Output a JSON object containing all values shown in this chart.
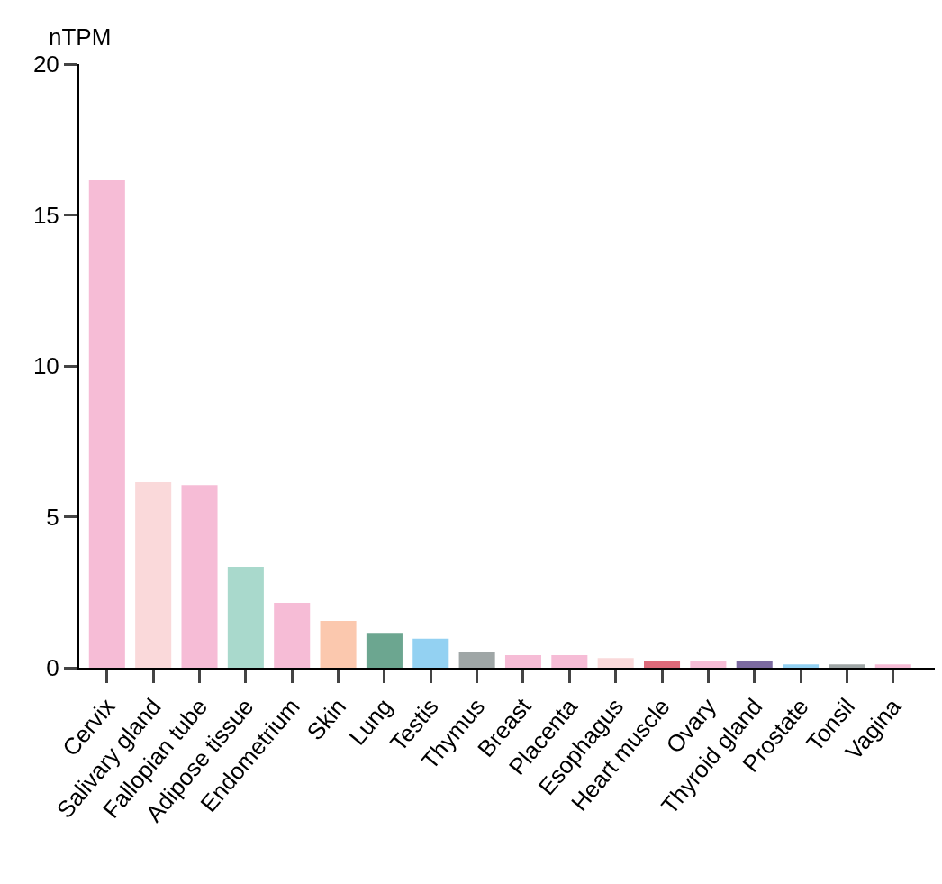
{
  "chart_data": {
    "type": "bar",
    "ylabel": "nTPM",
    "categories": [
      "Cervix",
      "Salivary gland",
      "Fallopian tube",
      "Adipose tissue",
      "Endometrium",
      "Skin",
      "Lung",
      "Testis",
      "Thymus",
      "Breast",
      "Placenta",
      "Esophagus",
      "Heart muscle",
      "Ovary",
      "Thyroid gland",
      "Prostate",
      "Tonsil",
      "Vagina"
    ],
    "values": [
      16.15,
      6.15,
      6.05,
      3.34,
      2.15,
      1.55,
      1.13,
      0.96,
      0.54,
      0.42,
      0.42,
      0.32,
      0.22,
      0.22,
      0.22,
      0.11,
      0.11,
      0.11
    ],
    "colors": [
      "#f6bcd6",
      "#fad9da",
      "#f6bcd6",
      "#a9d9cc",
      "#f6bcd6",
      "#fbc8ae",
      "#6ca690",
      "#93d1f2",
      "#9fa6a6",
      "#f6bcd6",
      "#f6bcd6",
      "#fad9da",
      "#dc6a7a",
      "#f6bcd6",
      "#7c6aa0",
      "#93d1f2",
      "#9fa6a6",
      "#f6bcd6"
    ],
    "ylim": [
      0,
      20
    ],
    "yticks": [
      0,
      5,
      10,
      15,
      20
    ]
  }
}
